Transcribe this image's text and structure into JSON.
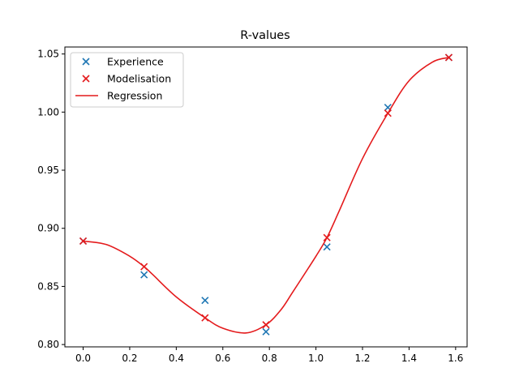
{
  "chart_data": {
    "type": "scatter",
    "title": "R-values",
    "xlabel": "",
    "ylabel": "",
    "xlim": [
      -0.0785,
      1.6493
    ],
    "ylim": [
      0.798,
      1.056
    ],
    "x_ticks": [
      0.0,
      0.2,
      0.4,
      0.6,
      0.8,
      1.0,
      1.2,
      1.4,
      1.6
    ],
    "x_tick_labels": [
      "0.0",
      "0.2",
      "0.4",
      "0.6",
      "0.8",
      "1.0",
      "1.2",
      "1.4",
      "1.6"
    ],
    "y_ticks": [
      0.8,
      0.85,
      0.9,
      0.95,
      1.0,
      1.05
    ],
    "y_tick_labels": [
      "0.80",
      "0.85",
      "0.90",
      "0.95",
      "1.00",
      "1.05"
    ],
    "grid": false,
    "legend_position": "upper-left",
    "legend": [
      "Experience",
      "Modelisation",
      "Regression"
    ],
    "series": [
      {
        "name": "Experience",
        "kind": "scatter",
        "marker": "x",
        "color": "#1f77b4",
        "x": [
          0.0,
          0.2618,
          0.5236,
          0.7854,
          1.0472,
          1.309,
          1.5708
        ],
        "y": [
          0.889,
          0.86,
          0.838,
          0.811,
          0.884,
          1.004,
          1.047
        ]
      },
      {
        "name": "Modelisation",
        "kind": "scatter",
        "marker": "x",
        "color": "#e41a1c",
        "x": [
          0.0,
          0.2618,
          0.5236,
          0.7854,
          1.0472,
          1.309,
          1.5708
        ],
        "y": [
          0.889,
          0.867,
          0.823,
          0.817,
          0.892,
          0.999,
          1.047
        ]
      },
      {
        "name": "Regression",
        "kind": "line",
        "color": "#e41a1c",
        "x": [
          0.0,
          0.1,
          0.2,
          0.2618,
          0.3,
          0.4,
          0.5236,
          0.6,
          0.7,
          0.7854,
          0.85,
          0.9,
          1.0,
          1.0472,
          1.1,
          1.2,
          1.309,
          1.4,
          1.5,
          1.5708
        ],
        "y": [
          0.889,
          0.886,
          0.876,
          0.867,
          0.86,
          0.841,
          0.823,
          0.814,
          0.81,
          0.817,
          0.83,
          0.845,
          0.876,
          0.892,
          0.915,
          0.96,
          0.999,
          1.027,
          1.043,
          1.047
        ]
      }
    ]
  }
}
